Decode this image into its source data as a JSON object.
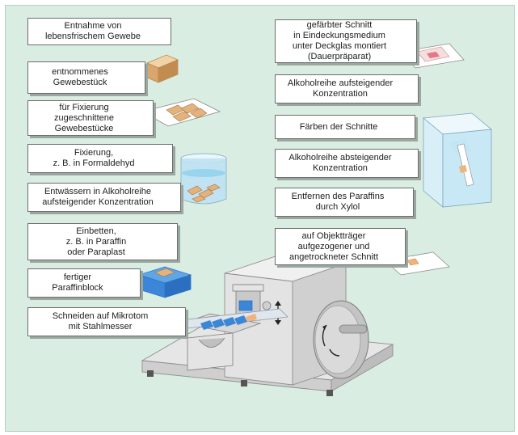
{
  "left_steps": [
    "Entnahme von\nlebensfrischem Gewebe",
    "entnommenes\nGewebestück",
    "für Fixierung\nzugeschnittene\nGewebestücke",
    "Fixierung,\nz. B. in Formaldehyd",
    "Entwässern in Alkoholreihe\naufsteigender Konzentration",
    "Einbetten,\nz. B. in Paraffin\noder Paraplast",
    "fertiger\nParaffinblock",
    "Schneiden auf Mikrotom\nmit Stahlmesser"
  ],
  "right_steps": [
    "gefärbter Schnitt\nin Eindeckungsmedium\nunter Deckglas montiert\n(Dauerpräparat)",
    "Alkoholreihe aufsteigender\nKonzentration",
    "Färben der Schnitte",
    "Alkoholreihe absteigender\nKonzentration",
    "Entfernen des Paraffins\ndurch Xylol",
    "auf Objektträger\naufgezogener und\nangetrockneter Schnitt"
  ],
  "colors": {
    "background": "#d9ede2",
    "box_border": "#6d6d6d",
    "accent_blue": "#2f74c8",
    "tissue": "#e0b07a",
    "machine": "#dcdcdc"
  }
}
